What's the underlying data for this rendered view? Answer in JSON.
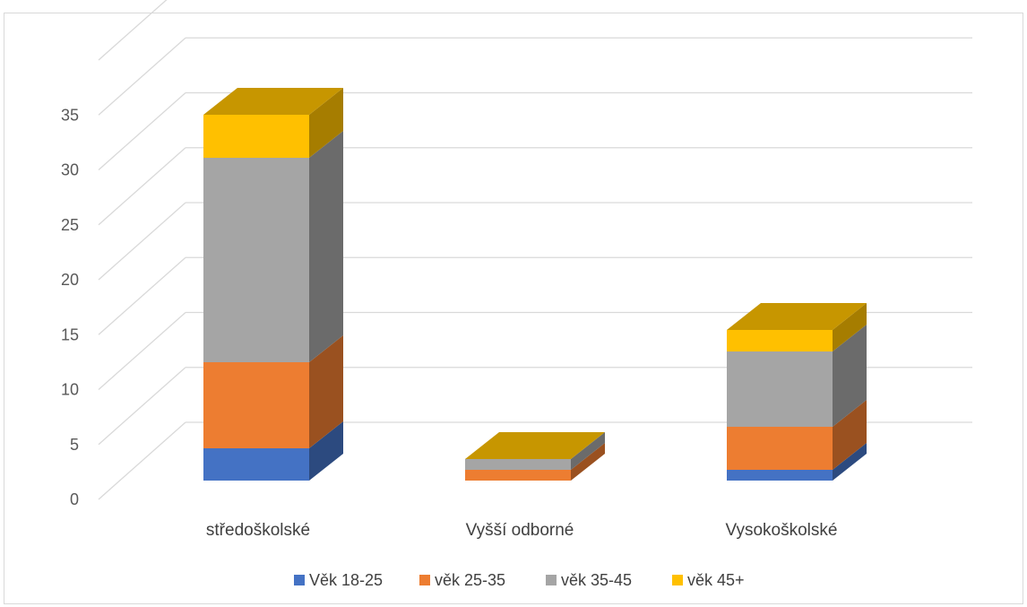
{
  "chart_data": {
    "type": "bar",
    "stacked": true,
    "three_d": true,
    "categories": [
      "středoškolské",
      "Vyšší odborné",
      "Vysokoškolské"
    ],
    "series": [
      {
        "name": "Věk 18-25",
        "values": [
          3,
          0,
          1
        ],
        "color": "#4472C4"
      },
      {
        "name": "věk 25-35",
        "values": [
          8,
          1,
          4
        ],
        "color": "#ED7D31"
      },
      {
        "name": "věk 35-45",
        "values": [
          19,
          1,
          7
        ],
        "color": "#A5A5A5"
      },
      {
        "name": "věk 45+",
        "values": [
          4,
          0,
          2
        ],
        "color": "#FFC000"
      }
    ],
    "ylim": [
      0,
      35
    ],
    "yticks": [
      0,
      5,
      10,
      15,
      20,
      25,
      30,
      35
    ],
    "grid": true,
    "legend_position": "bottom"
  }
}
